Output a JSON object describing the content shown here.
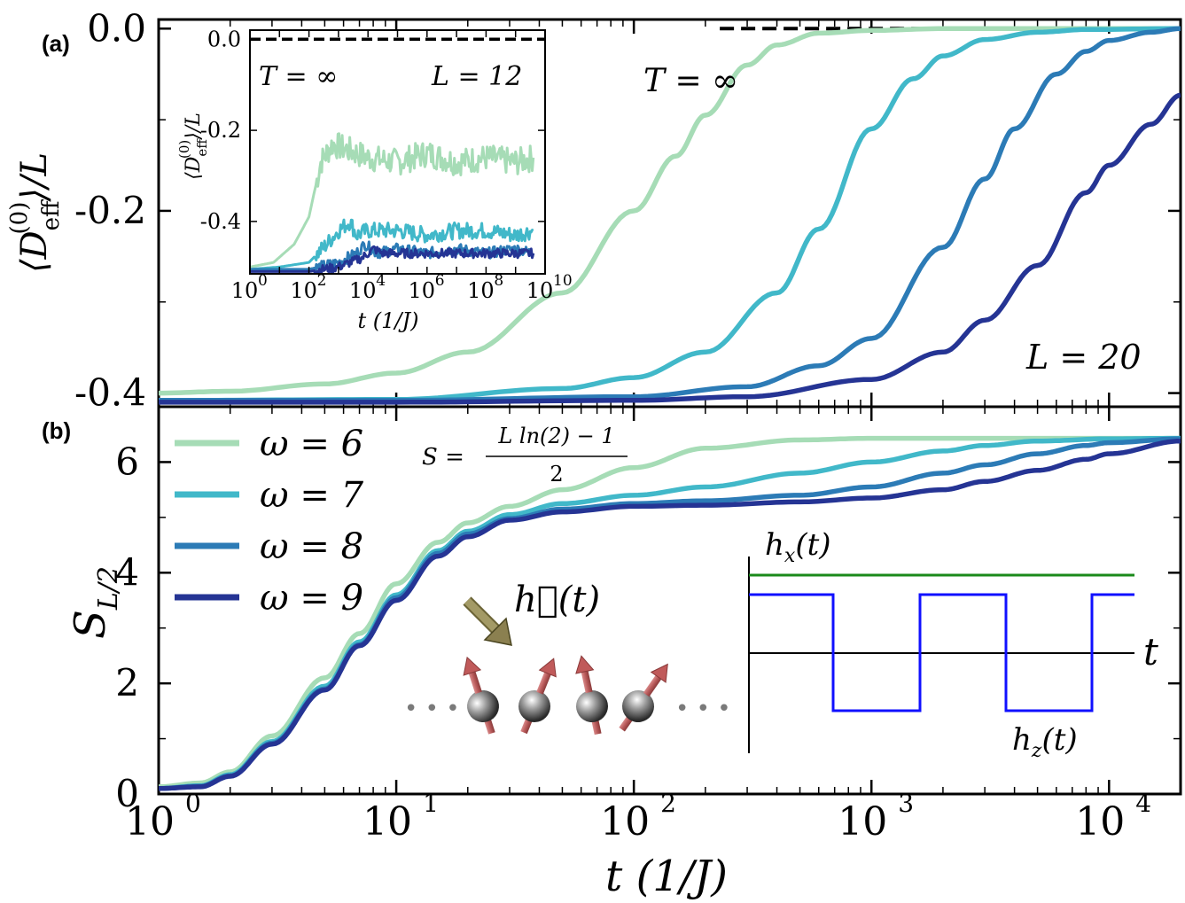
{
  "colors": {
    "w6": "#a6dcb6",
    "w7": "#41b8c9",
    "w8": "#2c7bb6",
    "w9": "#253494",
    "black": "#000000",
    "hx": "#1a8a1a",
    "hz": "#1010ff",
    "arrow": "#8b8050",
    "spin_ball": "#6f6f6f",
    "spin_arrow": "#c86a6a"
  },
  "panel_labels": {
    "a": "(a)",
    "b": "(b)"
  },
  "chart_data": [
    {
      "id": "panel-a",
      "type": "line",
      "xscale": "log",
      "xlim": [
        1,
        20000
      ],
      "ylim": [
        -0.415,
        0.01
      ],
      "ylabel": "⟨D_eff^(0)⟩/L",
      "ytick_labels": [
        "0.0",
        "-0.2",
        "-0.4"
      ],
      "yticks": [
        0.0,
        -0.2,
        -0.4
      ],
      "annotations": {
        "t_inf": "T = ∞",
        "L": "L = 20"
      },
      "reference_line": {
        "y": 0.0,
        "x_from": 230,
        "x_to": 20000
      },
      "series": [
        {
          "key": "w6",
          "x": [
            1,
            2,
            5,
            10,
            20,
            50,
            100,
            150,
            200,
            300,
            400,
            600,
            1000,
            2000,
            20000
          ],
          "values": [
            -0.4,
            -0.398,
            -0.39,
            -0.378,
            -0.355,
            -0.29,
            -0.2,
            -0.14,
            -0.095,
            -0.04,
            -0.018,
            -0.005,
            -0.002,
            0.0,
            0.0
          ]
        },
        {
          "key": "w7",
          "x": [
            1,
            10,
            50,
            100,
            200,
            400,
            600,
            1000,
            1500,
            2000,
            3000,
            5000,
            8000,
            20000
          ],
          "values": [
            -0.408,
            -0.407,
            -0.395,
            -0.383,
            -0.355,
            -0.29,
            -0.22,
            -0.11,
            -0.055,
            -0.03,
            -0.012,
            -0.004,
            -0.001,
            0.0
          ]
        },
        {
          "key": "w8",
          "x": [
            1,
            10,
            100,
            300,
            600,
            1000,
            2000,
            3000,
            4000,
            6000,
            8000,
            10000,
            15000,
            20000
          ],
          "values": [
            -0.408,
            -0.408,
            -0.404,
            -0.393,
            -0.37,
            -0.34,
            -0.24,
            -0.165,
            -0.11,
            -0.05,
            -0.025,
            -0.013,
            -0.004,
            0.0
          ]
        },
        {
          "key": "w9",
          "x": [
            1,
            10,
            100,
            300,
            1000,
            2000,
            3000,
            5000,
            8000,
            10000,
            15000,
            20000
          ],
          "values": [
            -0.41,
            -0.41,
            -0.408,
            -0.404,
            -0.385,
            -0.355,
            -0.32,
            -0.26,
            -0.18,
            -0.15,
            -0.105,
            -0.073
          ]
        }
      ]
    },
    {
      "id": "panel-a-inset",
      "type": "line",
      "xscale": "log",
      "xlim": [
        1,
        10000000000.0
      ],
      "ylim": [
        -0.515,
        0.02
      ],
      "xlabel": "t  (1/J)",
      "ylabel": "⟨D_eff^(0)⟩/L",
      "xtick_labels": [
        "10",
        "10",
        "10",
        "10",
        "10",
        "10"
      ],
      "xtick_exponents": [
        "0",
        "2",
        "4",
        "6",
        "8",
        "10"
      ],
      "xticks_log10": [
        0,
        2,
        4,
        6,
        8,
        10
      ],
      "ytick_labels": [
        "0.0",
        "-0.2",
        "-0.4"
      ],
      "yticks": [
        0.0,
        -0.2,
        -0.4
      ],
      "annotations": {
        "t_inf": "T = ∞",
        "L": "L = 12"
      },
      "reference_line": {
        "y": 0.0
      },
      "series": [
        {
          "key": "w6",
          "x_log10": [
            0,
            0.8,
            1.5,
            2.0,
            2.2,
            2.4,
            2.6,
            2.8,
            3.2,
            4,
            5,
            6,
            7,
            8,
            9,
            9.6
          ],
          "values": [
            -0.5,
            -0.49,
            -0.45,
            -0.39,
            -0.33,
            -0.27,
            -0.25,
            -0.23,
            -0.24,
            -0.26,
            -0.27,
            -0.25,
            -0.27,
            -0.26,
            -0.27,
            -0.26
          ],
          "noise": 0.03
        },
        {
          "key": "w7",
          "x_log10": [
            0,
            1,
            2,
            2.6,
            3.0,
            3.4,
            3.6,
            4,
            5,
            6,
            7,
            8,
            9,
            9.6
          ],
          "values": [
            -0.505,
            -0.5,
            -0.49,
            -0.45,
            -0.42,
            -0.4,
            -0.43,
            -0.42,
            -0.42,
            -0.43,
            -0.42,
            -0.42,
            -0.43,
            -0.42
          ],
          "noise": 0.018
        },
        {
          "key": "w8",
          "x_log10": [
            0,
            2,
            3,
            3.6,
            3.9,
            4.1,
            4.3,
            5,
            6,
            7,
            8,
            9,
            9.6
          ],
          "values": [
            -0.505,
            -0.505,
            -0.49,
            -0.47,
            -0.45,
            -0.46,
            -0.47,
            -0.46,
            -0.47,
            -0.46,
            -0.47,
            -0.46,
            -0.47
          ],
          "noise": 0.012
        },
        {
          "key": "w9",
          "x_log10": [
            0,
            2,
            3,
            3.8,
            4.2,
            4.5,
            5,
            6,
            7,
            8,
            9,
            9.6
          ],
          "values": [
            -0.51,
            -0.51,
            -0.5,
            -0.48,
            -0.46,
            -0.47,
            -0.47,
            -0.47,
            -0.47,
            -0.47,
            -0.47,
            -0.47
          ],
          "noise": 0.01
        }
      ]
    },
    {
      "id": "panel-b",
      "type": "line",
      "xscale": "log",
      "xlim": [
        1,
        20000
      ],
      "ylim": [
        0,
        7
      ],
      "xlabel": "t  (1/J)",
      "ylabel": "S_L/2",
      "xtick_labels": [
        "10",
        "10",
        "10",
        "10",
        "10"
      ],
      "xtick_exponents": [
        "0",
        "1",
        "2",
        "3",
        "4"
      ],
      "xticks_log10": [
        0,
        1,
        2,
        3,
        4
      ],
      "ytick_labels": [
        "0",
        "2",
        "4",
        "6"
      ],
      "yticks": [
        0,
        2,
        4,
        6
      ],
      "reference_line": {
        "y": 6.43,
        "x_from": 20,
        "x_to": 20000
      },
      "annotations": {
        "S_formula_left": "S =",
        "S_formula_num": "L ln(2) − 1",
        "S_formula_den": "2"
      },
      "legend": {
        "placement": "top-left",
        "entries": [
          {
            "key": "w6",
            "label": "ω = 6"
          },
          {
            "key": "w7",
            "label": "ω = 7"
          },
          {
            "key": "w8",
            "label": "ω = 8"
          },
          {
            "key": "w9",
            "label": "ω = 9"
          }
        ]
      },
      "series": [
        {
          "key": "w6",
          "x": [
            1,
            1.5,
            2,
            3,
            5,
            7,
            10,
            15,
            20,
            30,
            50,
            100,
            200,
            500,
            1000,
            3000,
            10000,
            20000
          ],
          "values": [
            0.13,
            0.2,
            0.4,
            1.05,
            2.1,
            2.9,
            3.8,
            4.55,
            4.9,
            5.2,
            5.5,
            5.9,
            6.25,
            6.4,
            6.43,
            6.43,
            6.43,
            6.43
          ]
        },
        {
          "key": "w7",
          "x": [
            1,
            1.5,
            2,
            3,
            5,
            7,
            10,
            15,
            20,
            30,
            50,
            100,
            200,
            500,
            1000,
            2000,
            3000,
            5000,
            10000,
            20000
          ],
          "values": [
            0.1,
            0.15,
            0.35,
            0.95,
            1.95,
            2.75,
            3.6,
            4.4,
            4.75,
            5.05,
            5.25,
            5.4,
            5.55,
            5.8,
            6.0,
            6.2,
            6.3,
            6.38,
            6.42,
            6.43
          ]
        },
        {
          "key": "w8",
          "x": [
            1,
            1.5,
            2,
            3,
            5,
            7,
            10,
            15,
            20,
            30,
            50,
            100,
            200,
            500,
            1000,
            2000,
            3000,
            5000,
            8000,
            10000,
            20000
          ],
          "values": [
            0.1,
            0.14,
            0.33,
            0.92,
            1.9,
            2.7,
            3.55,
            4.35,
            4.7,
            4.98,
            5.15,
            5.25,
            5.3,
            5.4,
            5.55,
            5.8,
            5.95,
            6.15,
            6.3,
            6.35,
            6.42
          ]
        },
        {
          "key": "w9",
          "x": [
            1,
            1.5,
            2,
            3,
            5,
            7,
            10,
            15,
            20,
            30,
            50,
            100,
            200,
            500,
            1000,
            2000,
            3000,
            5000,
            8000,
            10000,
            20000
          ],
          "values": [
            0.1,
            0.13,
            0.32,
            0.9,
            1.88,
            2.68,
            3.5,
            4.3,
            4.65,
            4.95,
            5.1,
            5.2,
            5.22,
            5.28,
            5.35,
            5.5,
            5.65,
            5.85,
            6.05,
            6.15,
            6.38
          ]
        }
      ]
    }
  ],
  "schematic": {
    "h_vector": "h⃗(t)",
    "hx_label": "h_x(t)",
    "hz_label": "h_z(t)",
    "t_label": "t",
    "dots": "• • •"
  }
}
